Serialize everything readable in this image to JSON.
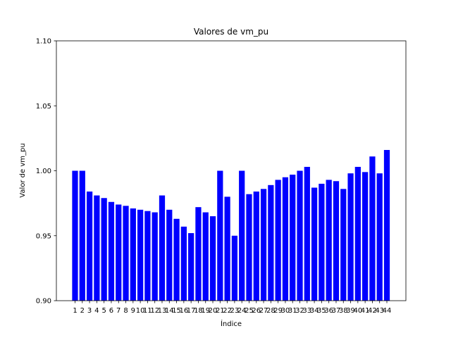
{
  "chart_data": {
    "type": "bar",
    "title": "Valores de vm_pu",
    "xlabel": "Índice",
    "ylabel": "Valor de vm_pu",
    "ylim": [
      0.9,
      1.1
    ],
    "yticks": [
      "0.90",
      "0.95",
      "1.00",
      "1.05",
      "1.10"
    ],
    "grid": false,
    "bar_color": "#0000ff",
    "categories": [
      "1",
      "2",
      "3",
      "4",
      "5",
      "6",
      "7",
      "8",
      "9",
      "10",
      "11",
      "12",
      "13",
      "14",
      "15",
      "16",
      "17",
      "18",
      "19",
      "20",
      "21",
      "22",
      "23",
      "24",
      "25",
      "26",
      "27",
      "28",
      "29",
      "30",
      "31",
      "32",
      "33",
      "34",
      "35",
      "36",
      "37",
      "38",
      "39",
      "40",
      "41",
      "42",
      "43",
      "44"
    ],
    "values": [
      1.0,
      1.0,
      0.984,
      0.981,
      0.979,
      0.976,
      0.974,
      0.973,
      0.971,
      0.97,
      0.969,
      0.968,
      0.981,
      0.97,
      0.963,
      0.957,
      0.952,
      0.972,
      0.968,
      0.965,
      1.0,
      0.98,
      0.95,
      1.0,
      0.982,
      0.984,
      0.986,
      0.989,
      0.993,
      0.995,
      0.997,
      1.0,
      1.003,
      0.987,
      0.99,
      0.993,
      0.992,
      0.986,
      0.998,
      1.003,
      0.999,
      1.011,
      0.998,
      1.016
    ]
  }
}
